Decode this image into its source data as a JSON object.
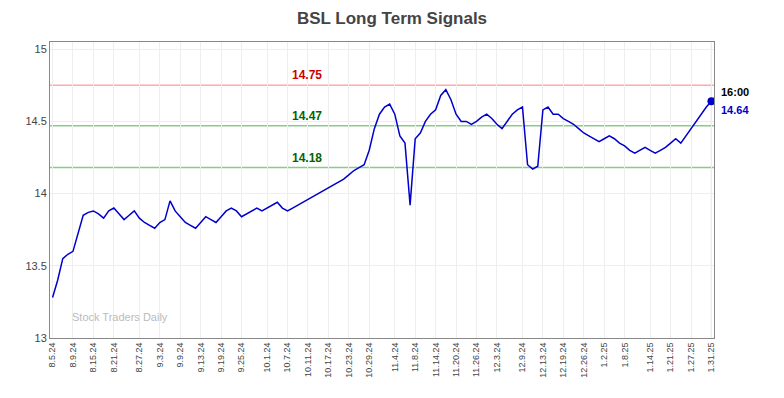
{
  "chart_data": {
    "type": "line",
    "title": "BSL Long Term Signals",
    "color": "#0000cc",
    "grid": true,
    "ylim": [
      13.0,
      15.05
    ],
    "yticks": [
      13.0,
      13.5,
      14.0,
      14.5,
      15.0
    ],
    "categories": [
      "8.5.24",
      null,
      null,
      null,
      "8.9.24",
      null,
      null,
      null,
      "8.15.24",
      null,
      null,
      null,
      "8.21.24",
      null,
      null,
      null,
      null,
      "8.27.24",
      null,
      null,
      null,
      "9.3.24",
      null,
      null,
      null,
      "9.9.24",
      null,
      null,
      null,
      "9.13.24",
      null,
      null,
      null,
      "9.19.24",
      null,
      null,
      null,
      "9.25.24",
      null,
      null,
      null,
      null,
      "10.1.24",
      null,
      null,
      null,
      "10.7.24",
      null,
      null,
      null,
      "10.11.24",
      null,
      null,
      null,
      "10.17.24",
      null,
      null,
      null,
      "10.23.24",
      null,
      null,
      null,
      "10.29.24",
      null,
      null,
      null,
      null,
      "11.4.24",
      null,
      null,
      null,
      "11.8.24",
      null,
      null,
      null,
      "11.14.24",
      null,
      null,
      null,
      "11.20.24",
      null,
      null,
      null,
      "11.26.24",
      null,
      null,
      null,
      "12.3.24",
      null,
      null,
      null,
      null,
      "12.9.24",
      null,
      null,
      null,
      "12.13.24",
      null,
      null,
      null,
      "12.19.24",
      null,
      null,
      null,
      "12.26.24",
      null,
      null,
      null,
      "1.2.25",
      null,
      null,
      null,
      "1.8.25",
      null,
      null,
      null,
      null,
      "1.14.25",
      null,
      null,
      null,
      "1.21.25",
      null,
      null,
      null,
      "1.27.25",
      null,
      null,
      null,
      "1.31.25"
    ],
    "values": [
      13.28,
      13.4,
      13.55,
      13.58,
      13.6,
      13.72,
      13.85,
      13.87,
      13.88,
      13.86,
      13.83,
      13.88,
      13.9,
      13.86,
      13.82,
      13.85,
      13.88,
      13.83,
      13.8,
      13.78,
      13.76,
      13.8,
      13.82,
      13.95,
      13.88,
      13.84,
      13.8,
      13.78,
      13.76,
      13.8,
      13.84,
      13.82,
      13.8,
      13.84,
      13.88,
      13.9,
      13.88,
      13.84,
      13.86,
      13.88,
      13.9,
      13.88,
      13.9,
      13.92,
      13.94,
      13.9,
      13.88,
      13.9,
      13.92,
      13.94,
      13.96,
      13.98,
      14.0,
      14.02,
      14.04,
      14.06,
      14.08,
      14.1,
      14.13,
      14.16,
      14.18,
      14.2,
      14.3,
      14.45,
      14.55,
      14.6,
      14.62,
      14.55,
      14.4,
      14.35,
      13.92,
      14.38,
      14.42,
      14.5,
      14.55,
      14.58,
      14.68,
      14.72,
      14.65,
      14.55,
      14.5,
      14.5,
      14.48,
      14.5,
      14.53,
      14.55,
      14.52,
      14.48,
      14.45,
      14.5,
      14.55,
      14.58,
      14.6,
      14.2,
      14.17,
      14.19,
      14.58,
      14.6,
      14.55,
      14.55,
      14.52,
      14.5,
      14.48,
      14.45,
      14.42,
      14.4,
      14.38,
      14.36,
      14.38,
      14.4,
      14.38,
      14.35,
      14.33,
      14.3,
      14.28,
      14.3,
      14.32,
      14.3,
      14.28,
      14.3,
      14.32,
      14.35,
      14.38,
      14.35,
      14.4,
      14.45,
      14.5,
      14.55,
      14.6,
      14.64
    ],
    "hlines": [
      {
        "y": 14.75,
        "color": "#ffaaaa",
        "label": "14.75",
        "label_color": "#cc0000"
      },
      {
        "y": 14.47,
        "color": "#88cc88",
        "label": "14.47",
        "label_color": "#006600"
      },
      {
        "y": 14.18,
        "color": "#88cc88",
        "label": "14.18",
        "label_color": "#006600"
      }
    ],
    "point_labels": [
      {
        "text": "16:00",
        "color": "#000000"
      },
      {
        "text": "14.64",
        "color": "#0000cc"
      }
    ],
    "watermark": {
      "text": "Stock Traders Daily",
      "color": "#bbbbbb"
    }
  }
}
